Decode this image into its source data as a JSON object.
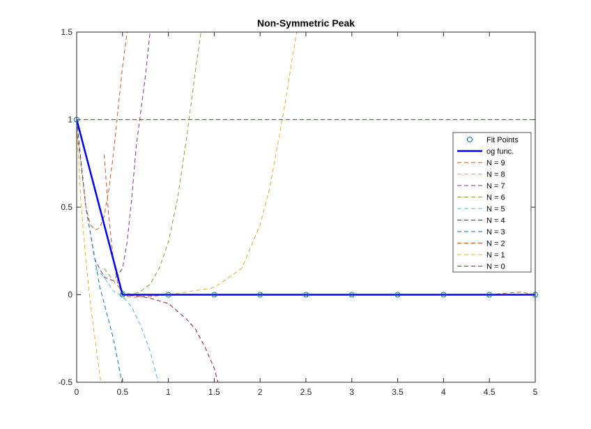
{
  "chart_data": {
    "type": "line",
    "title": "Non-Symmetric Peak",
    "xlim": [
      0,
      5
    ],
    "ylim": [
      -0.5,
      1.5
    ],
    "xticks": [
      0,
      0.5,
      1,
      1.5,
      2,
      2.5,
      3,
      3.5,
      4,
      4.5,
      5
    ],
    "yticks": [
      -0.5,
      0,
      0.5,
      1,
      1.5
    ],
    "grid": false,
    "legend_position": "right",
    "fit_points": {
      "name": "Fit Points",
      "color": "#0072BD",
      "x": [
        0,
        0.5,
        1,
        1.5,
        2,
        2.5,
        3,
        3.5,
        4,
        4.5,
        5
      ],
      "y": [
        1,
        0,
        0,
        0,
        0,
        0,
        0,
        0,
        0,
        0,
        0
      ]
    },
    "og_func": {
      "name": "og func.",
      "color": "#0000FF",
      "x": [
        0,
        0.5,
        5
      ],
      "y": [
        1,
        0,
        0
      ]
    },
    "series": [
      {
        "name": "N = 9",
        "color": "#D95319",
        "x": [
          0.3,
          0.35,
          0.4,
          0.45,
          0.5,
          0.6,
          0.8,
          1,
          1.5,
          2,
          2.5,
          3,
          3.5,
          4,
          4.5,
          4.7,
          4.85,
          5
        ],
        "y": [
          0.8,
          0.45,
          0.2,
          0.06,
          0,
          -0.015,
          -0.01,
          0,
          0,
          0,
          0,
          0,
          0,
          0,
          0,
          0.01,
          0.015,
          0
        ]
      },
      {
        "name": "N = 8",
        "color": "#EDB120",
        "x": [
          0.7,
          0.8,
          1,
          1.5,
          1.8,
          2,
          2.1,
          2.2,
          2.3,
          2.35,
          2.4
        ],
        "y": [
          -0.005,
          -0.005,
          0,
          0.04,
          0.15,
          0.4,
          0.6,
          0.88,
          1.18,
          1.35,
          1.5
        ]
      },
      {
        "name": "N = 7",
        "color": "#7E2F8E",
        "x": [
          0,
          0.1,
          0.2,
          0.3,
          0.4,
          0.5,
          0.55,
          0.6,
          0.65,
          0.7,
          0.75,
          0.8,
          0.85
        ],
        "y": [
          1,
          0.5,
          0.2,
          0.1,
          0.08,
          0.15,
          0.3,
          0.55,
          0.85,
          1.05,
          1.25,
          1.5,
          1.75
        ]
      },
      {
        "name": "N = 6",
        "color": "#77AC30",
        "x": [
          0.3,
          0.4,
          0.5,
          0.6,
          0.7,
          0.8,
          0.9,
          1,
          1.1,
          1.2,
          1.3,
          1.37
        ],
        "y": [
          0.15,
          0.08,
          0.02,
          0,
          0.02,
          0.06,
          0.15,
          0.3,
          0.55,
          0.9,
          1.3,
          1.55
        ]
      },
      {
        "name": "N = 5",
        "color": "#4DBEEE",
        "x": [
          0.2,
          0.3,
          0.4,
          0.5,
          0.6,
          0.7,
          0.8,
          0.9
        ],
        "y": [
          0.15,
          0.1,
          0.02,
          -0.01,
          -0.07,
          -0.18,
          -0.32,
          -0.52
        ]
      },
      {
        "name": "N = 4",
        "color": "#A2142F",
        "x": [
          0.5,
          0.7,
          0.8,
          1,
          1.2,
          1.3,
          1.4,
          1.5,
          1.55
        ],
        "y": [
          0,
          -0.01,
          -0.02,
          -0.05,
          -0.14,
          -0.2,
          -0.3,
          -0.42,
          -0.52
        ]
      },
      {
        "name": "N = 3",
        "color": "#0072BD",
        "x": [
          0,
          0.1,
          0.2,
          0.25,
          0.3,
          0.35,
          0.4,
          0.45,
          0.5
        ],
        "y": [
          1,
          0.5,
          0.2,
          0.05,
          -0.05,
          -0.15,
          -0.25,
          -0.38,
          -0.52
        ]
      },
      {
        "name": "N = 2",
        "color": "#D95319",
        "x": [
          0,
          0.1,
          0.15,
          0.2,
          0.25,
          0.3,
          0.35,
          0.4,
          0.45,
          0.5,
          0.55,
          0.6
        ],
        "y": [
          0.95,
          0.5,
          0.4,
          0.37,
          0.38,
          0.45,
          0.6,
          0.8,
          1.05,
          1.3,
          1.5,
          1.7
        ]
      },
      {
        "name": "N = 1",
        "color": "#EDB120",
        "x": [
          0,
          0.05,
          0.1,
          0.15,
          0.2,
          0.25,
          0.28
        ],
        "y": [
          0.96,
          0.5,
          0.2,
          -0.05,
          -0.25,
          -0.45,
          -0.55
        ]
      },
      {
        "name": "N = 0",
        "color": "#7E2F8E",
        "x": [
          0,
          5
        ],
        "y": [
          1,
          1
        ]
      }
    ]
  }
}
